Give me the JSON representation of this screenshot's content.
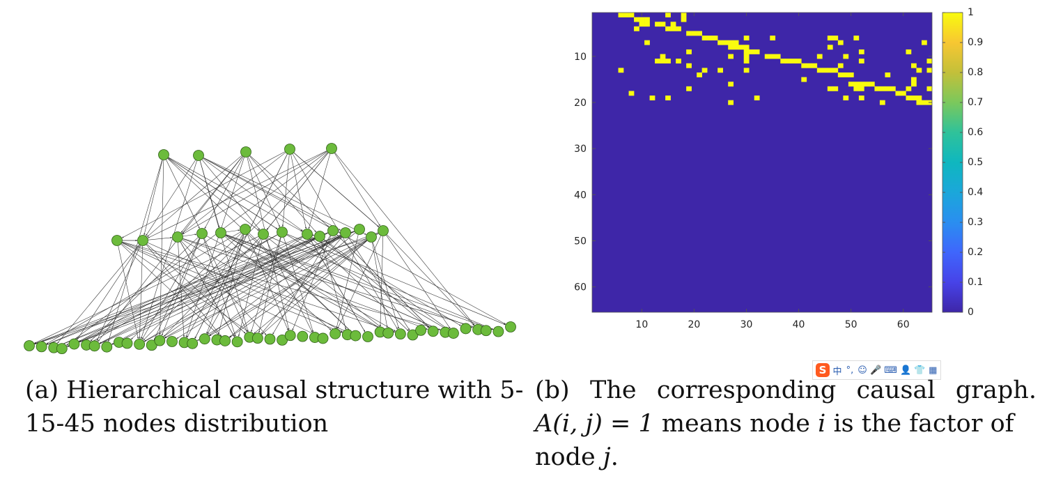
{
  "graph": {
    "layers": [
      {
        "count": 5
      },
      {
        "count": 15
      },
      {
        "count": 45
      }
    ],
    "node_color": "#6cbb3c",
    "node_stroke": "#2f5e16",
    "edge_color": "#333333"
  },
  "chart_data": {
    "type": "heatmap",
    "title": "",
    "xlabel": "",
    "ylabel": "",
    "rows": 65,
    "cols": 65,
    "xlim": [
      0.5,
      65.5
    ],
    "ylim": [
      0.5,
      65.5
    ],
    "x_ticks": [
      10,
      20,
      30,
      40,
      50,
      60
    ],
    "y_ticks": [
      10,
      20,
      30,
      40,
      50,
      60
    ],
    "colorbar_ticks": [
      0,
      0.1,
      0.2,
      0.3,
      0.4,
      0.5,
      0.6,
      0.7,
      0.8,
      0.9,
      1
    ],
    "colorbar_labels": [
      "0",
      "0.1",
      "0.2",
      "0.3",
      "0.4",
      "0.5",
      "0.6",
      "0.7",
      "0.8",
      "0.9",
      "1"
    ],
    "color_low": "#3e26a8",
    "color_high": "#f9fb0e",
    "grid": false,
    "ones": [
      [
        1,
        6
      ],
      [
        1,
        7
      ],
      [
        1,
        8
      ],
      [
        1,
        15
      ],
      [
        1,
        18
      ],
      [
        2,
        9
      ],
      [
        2,
        10
      ],
      [
        2,
        11
      ],
      [
        2,
        18
      ],
      [
        3,
        10
      ],
      [
        3,
        11
      ],
      [
        3,
        13
      ],
      [
        3,
        14
      ],
      [
        3,
        16
      ],
      [
        4,
        9
      ],
      [
        4,
        15
      ],
      [
        4,
        16
      ],
      [
        4,
        17
      ],
      [
        5,
        19
      ],
      [
        5,
        20
      ],
      [
        5,
        21
      ],
      [
        6,
        22
      ],
      [
        6,
        23
      ],
      [
        6,
        24
      ],
      [
        6,
        30
      ],
      [
        6,
        35
      ],
      [
        6,
        46
      ],
      [
        6,
        47
      ],
      [
        6,
        51
      ],
      [
        7,
        11
      ],
      [
        7,
        25
      ],
      [
        7,
        26
      ],
      [
        7,
        27
      ],
      [
        7,
        28
      ],
      [
        7,
        48
      ],
      [
        7,
        64
      ],
      [
        8,
        27
      ],
      [
        8,
        28
      ],
      [
        8,
        29
      ],
      [
        8,
        30
      ],
      [
        8,
        46
      ],
      [
        9,
        19
      ],
      [
        9,
        30
      ],
      [
        9,
        31
      ],
      [
        9,
        32
      ],
      [
        9,
        52
      ],
      [
        9,
        61
      ],
      [
        10,
        14
      ],
      [
        10,
        27
      ],
      [
        10,
        30
      ],
      [
        10,
        34
      ],
      [
        10,
        35
      ],
      [
        10,
        36
      ],
      [
        10,
        44
      ],
      [
        10,
        49
      ],
      [
        11,
        13
      ],
      [
        11,
        14
      ],
      [
        11,
        15
      ],
      [
        11,
        17
      ],
      [
        11,
        30
      ],
      [
        11,
        37
      ],
      [
        11,
        38
      ],
      [
        11,
        39
      ],
      [
        11,
        40
      ],
      [
        11,
        52
      ],
      [
        11,
        65
      ],
      [
        12,
        19
      ],
      [
        12,
        41
      ],
      [
        12,
        42
      ],
      [
        12,
        43
      ],
      [
        12,
        48
      ],
      [
        12,
        62
      ],
      [
        13,
        6
      ],
      [
        13,
        22
      ],
      [
        13,
        25
      ],
      [
        13,
        30
      ],
      [
        13,
        44
      ],
      [
        13,
        45
      ],
      [
        13,
        46
      ],
      [
        13,
        47
      ],
      [
        13,
        63
      ],
      [
        13,
        65
      ],
      [
        14,
        21
      ],
      [
        14,
        48
      ],
      [
        14,
        49
      ],
      [
        14,
        50
      ],
      [
        14,
        57
      ],
      [
        15,
        41
      ],
      [
        15,
        62
      ],
      [
        16,
        27
      ],
      [
        16,
        50
      ],
      [
        16,
        51
      ],
      [
        16,
        52
      ],
      [
        16,
        53
      ],
      [
        16,
        54
      ],
      [
        16,
        62
      ],
      [
        17,
        19
      ],
      [
        17,
        46
      ],
      [
        17,
        47
      ],
      [
        17,
        51
      ],
      [
        17,
        52
      ],
      [
        17,
        55
      ],
      [
        17,
        56
      ],
      [
        17,
        57
      ],
      [
        17,
        58
      ],
      [
        17,
        61
      ],
      [
        17,
        65
      ],
      [
        18,
        8
      ],
      [
        18,
        59
      ],
      [
        18,
        60
      ],
      [
        19,
        12
      ],
      [
        19,
        15
      ],
      [
        19,
        32
      ],
      [
        19,
        49
      ],
      [
        19,
        52
      ],
      [
        19,
        61
      ],
      [
        19,
        62
      ],
      [
        19,
        63
      ],
      [
        20,
        27
      ],
      [
        20,
        56
      ],
      [
        20,
        63
      ],
      [
        20,
        64
      ],
      [
        20,
        65
      ]
    ]
  },
  "caption_a": {
    "line1": "(a) Hierarchical causal structure with 5-",
    "line2": "15-45 nodes distribution"
  },
  "caption_b": {
    "w1": "(b)",
    "w2": "The",
    "w3": "corresponding",
    "w4": "causal",
    "w5": "graph.",
    "line2_math": "A(i, j) = 1",
    "line2_text1": " means node ",
    "line2_var": "i",
    "line2_text2": " is the factor of",
    "line3_text": "node ",
    "line3_var": "j",
    "line3_end": "."
  },
  "ime_toolbar": {
    "logo": "S",
    "mode": "中",
    "punct": "°,",
    "emoji": "☺",
    "mic": "🎤",
    "keyboard": "⌨",
    "user": "👤",
    "shirt": "👕",
    "grid": "▦"
  }
}
